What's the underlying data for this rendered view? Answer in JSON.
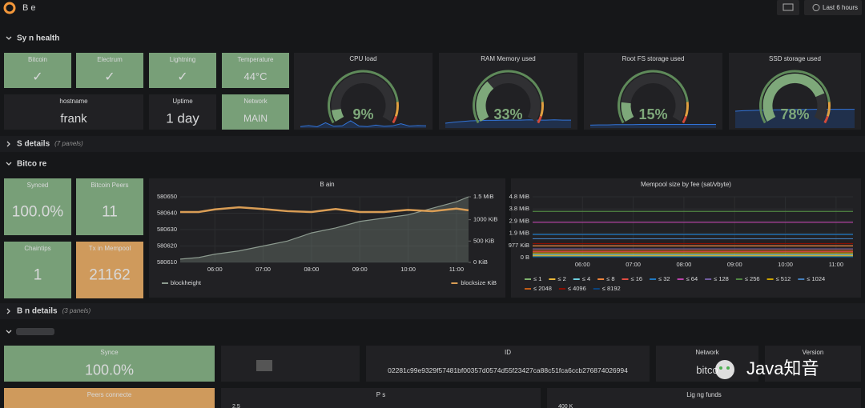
{
  "header": {
    "title": "B      e",
    "time_range": "Last 6 hours"
  },
  "rows": [
    {
      "title": "Sy    n health"
    },
    {
      "title": "S        details",
      "note": "(7 panels)"
    },
    {
      "title": "Bitco      re"
    },
    {
      "title": "B      n details",
      "note": "(3 panels)"
    }
  ],
  "stats": [
    {
      "title": "Bitcoin",
      "value": "✓",
      "color": "#789f78"
    },
    {
      "title": "Electrum",
      "value": "✓",
      "color": "#789f78"
    },
    {
      "title": "Lightning",
      "value": "✓",
      "color": "#789f78"
    },
    {
      "title": "Temperature",
      "value": "44°C",
      "color": "#789f78"
    },
    {
      "title": "hostname",
      "value": "frank",
      "color": "#212124"
    },
    {
      "title": "Uptime",
      "value": "1 day",
      "color": "#212124"
    },
    {
      "title": "Network",
      "value": "MAIN",
      "color": "#789f78"
    },
    {
      "title": "Synced",
      "value": "100.0%",
      "color": "#789f78"
    },
    {
      "title": "Bitcoin Peers",
      "value": 11,
      "color": "#789f78"
    },
    {
      "title": "Chaintips",
      "value": 1,
      "color": "#789f78"
    },
    {
      "title": "Tx in Mempool",
      "value": 21162,
      "color": "#cf9a5c"
    },
    {
      "title": "Synce",
      "value": "100.0%",
      "color": "#789f78"
    },
    {
      "title": "ID",
      "value": "02281c99e9329f57481bf00357d0574d55f23427ca88c51fca6ccb276874026994",
      "color": "#212124"
    },
    {
      "title": "Network",
      "value": "bitco",
      "color": "#212124"
    },
    {
      "title": "Version",
      "color": "#212124"
    },
    {
      "title": "Peers connecte",
      "color": "#cf9a5c"
    },
    {
      "title": "P      s",
      "axis_label": "2.5",
      "color": "#212124"
    },
    {
      "title": "Lig      ng funds",
      "axis_label": "400 K",
      "color": "#212124"
    }
  ],
  "gauges": [
    {
      "title": "CPU load",
      "value": 9,
      "label": "9%",
      "color": "#7ea87a",
      "sparkline": [
        6,
        10,
        5,
        22,
        7,
        9,
        30,
        8,
        6,
        12,
        7,
        9,
        18,
        8,
        10,
        9
      ]
    },
    {
      "title": "RAM Memory used",
      "value": 33,
      "label": "33%",
      "color": "#7ea87a",
      "sparkline": [
        20,
        24,
        27,
        30,
        31,
        32,
        32,
        33,
        33,
        33,
        34,
        33,
        33,
        34,
        33,
        33
      ]
    },
    {
      "title": "Root FS storage used",
      "value": 15,
      "label": "15%",
      "color": "#7ea87a",
      "sparkline": [
        12,
        13,
        13,
        14,
        14,
        14,
        15,
        15,
        15,
        15,
        15,
        15,
        15,
        15,
        15,
        15
      ]
    },
    {
      "title": "SSD storage used",
      "value": 78,
      "label": "78%",
      "color": "#7ea87a",
      "sparkline": [
        70,
        72,
        73,
        74,
        75,
        76,
        76,
        77,
        77,
        77,
        78,
        78,
        78,
        78,
        78,
        78
      ]
    }
  ],
  "chart_data": [
    {
      "type": "line",
      "title": "B          ain",
      "x": [
        "05:17",
        "05:40",
        "06:00",
        "06:30",
        "07:00",
        "07:30",
        "08:00",
        "08:30",
        "09:00",
        "09:30",
        "10:00",
        "10:30",
        "11:00",
        "11:15"
      ],
      "series": [
        {
          "name": "blockheight",
          "color": "#8c9a8f",
          "values": [
            580612,
            580613,
            580615,
            580617,
            580620,
            580623,
            580628,
            580631,
            580635,
            580637,
            580639,
            580643,
            580647,
            580650
          ]
        },
        {
          "name": "blocksize KiB",
          "color": "#d99d55",
          "axis": "y2",
          "values": [
            1180,
            1180,
            1240,
            1290,
            1250,
            1200,
            1180,
            1250,
            1180,
            1180,
            1230,
            1200,
            1260,
            1220
          ]
        }
      ],
      "xlim": [
        "05:17",
        "11:15"
      ],
      "xticks": [
        "06:00",
        "07:00",
        "08:00",
        "09:00",
        "10:00",
        "11:00"
      ],
      "ylim": [
        580610,
        580650
      ],
      "yticks": [
        580610,
        580620,
        580630,
        580640,
        580650
      ],
      "y2lim": [
        0,
        1536
      ],
      "y2ticks": [
        {
          "value": 0,
          "label": "0 KiB"
        },
        {
          "value": 500,
          "label": "500 KiB"
        },
        {
          "value": 1000,
          "label": "1000 KiB"
        },
        {
          "value": 1536,
          "label": "1.5 MiB"
        }
      ],
      "grid": true
    },
    {
      "type": "line",
      "title": "Mempool size by fee (sat/vbyte)",
      "x": [
        "05:01",
        "11:20"
      ],
      "series": [
        {
          "name": "≤ 1",
          "color": "#7eb26d",
          "values": [
            80000,
            80000
          ]
        },
        {
          "name": "≤ 2",
          "color": "#eab839",
          "values": [
            180000,
            180000
          ]
        },
        {
          "name": "≤ 4",
          "color": "#6ed0e0",
          "values": [
            260000,
            260000
          ]
        },
        {
          "name": "≤ 8",
          "color": "#ef843c",
          "values": [
            960000,
            960000
          ]
        },
        {
          "name": "≤ 16",
          "color": "#e24d42",
          "values": [
            480000,
            480000
          ]
        },
        {
          "name": "≤ 32",
          "color": "#1f78c1",
          "values": [
            1900000,
            1900000
          ]
        },
        {
          "name": "≤ 64",
          "color": "#ba43a9",
          "values": [
            2900000,
            2900000
          ]
        },
        {
          "name": "≤ 128",
          "color": "#705da0",
          "values": [
            720000,
            720000
          ]
        },
        {
          "name": "≤ 256",
          "color": "#508642",
          "values": [
            3800000,
            3800000
          ]
        },
        {
          "name": "≤ 512",
          "color": "#cca300",
          "values": [
            380000,
            380000
          ]
        },
        {
          "name": "≤ 1024",
          "color": "#447ebc",
          "values": [
            1550000,
            1550000
          ]
        },
        {
          "name": "≤ 2048",
          "color": "#c15c17",
          "values": [
            600000,
            600000
          ]
        },
        {
          "name": "≤ 4096",
          "color": "#890f02",
          "values": [
            1150000,
            1150000
          ]
        },
        {
          "name": "≤ 8192",
          "color": "#0a437c",
          "values": [
            40000,
            40000
          ]
        }
      ],
      "xlim": [
        "05:01",
        "11:20"
      ],
      "xticks": [
        "06:00",
        "07:00",
        "08:00",
        "09:00",
        "10:00",
        "11:00"
      ],
      "ylim": [
        0,
        5000000
      ],
      "yticks": [
        {
          "value": 0,
          "label": "0 B"
        },
        {
          "value": 1000000,
          "label": "977 KiB"
        },
        {
          "value": 2000000,
          "label": "1.9 MiB"
        },
        {
          "value": 3000000,
          "label": "2.9 MiB"
        },
        {
          "value": 4000000,
          "label": "3.8 MiB"
        },
        {
          "value": 5000000,
          "label": "4.8 MiB"
        }
      ],
      "grid": true
    }
  ],
  "watermark": "Java知音"
}
